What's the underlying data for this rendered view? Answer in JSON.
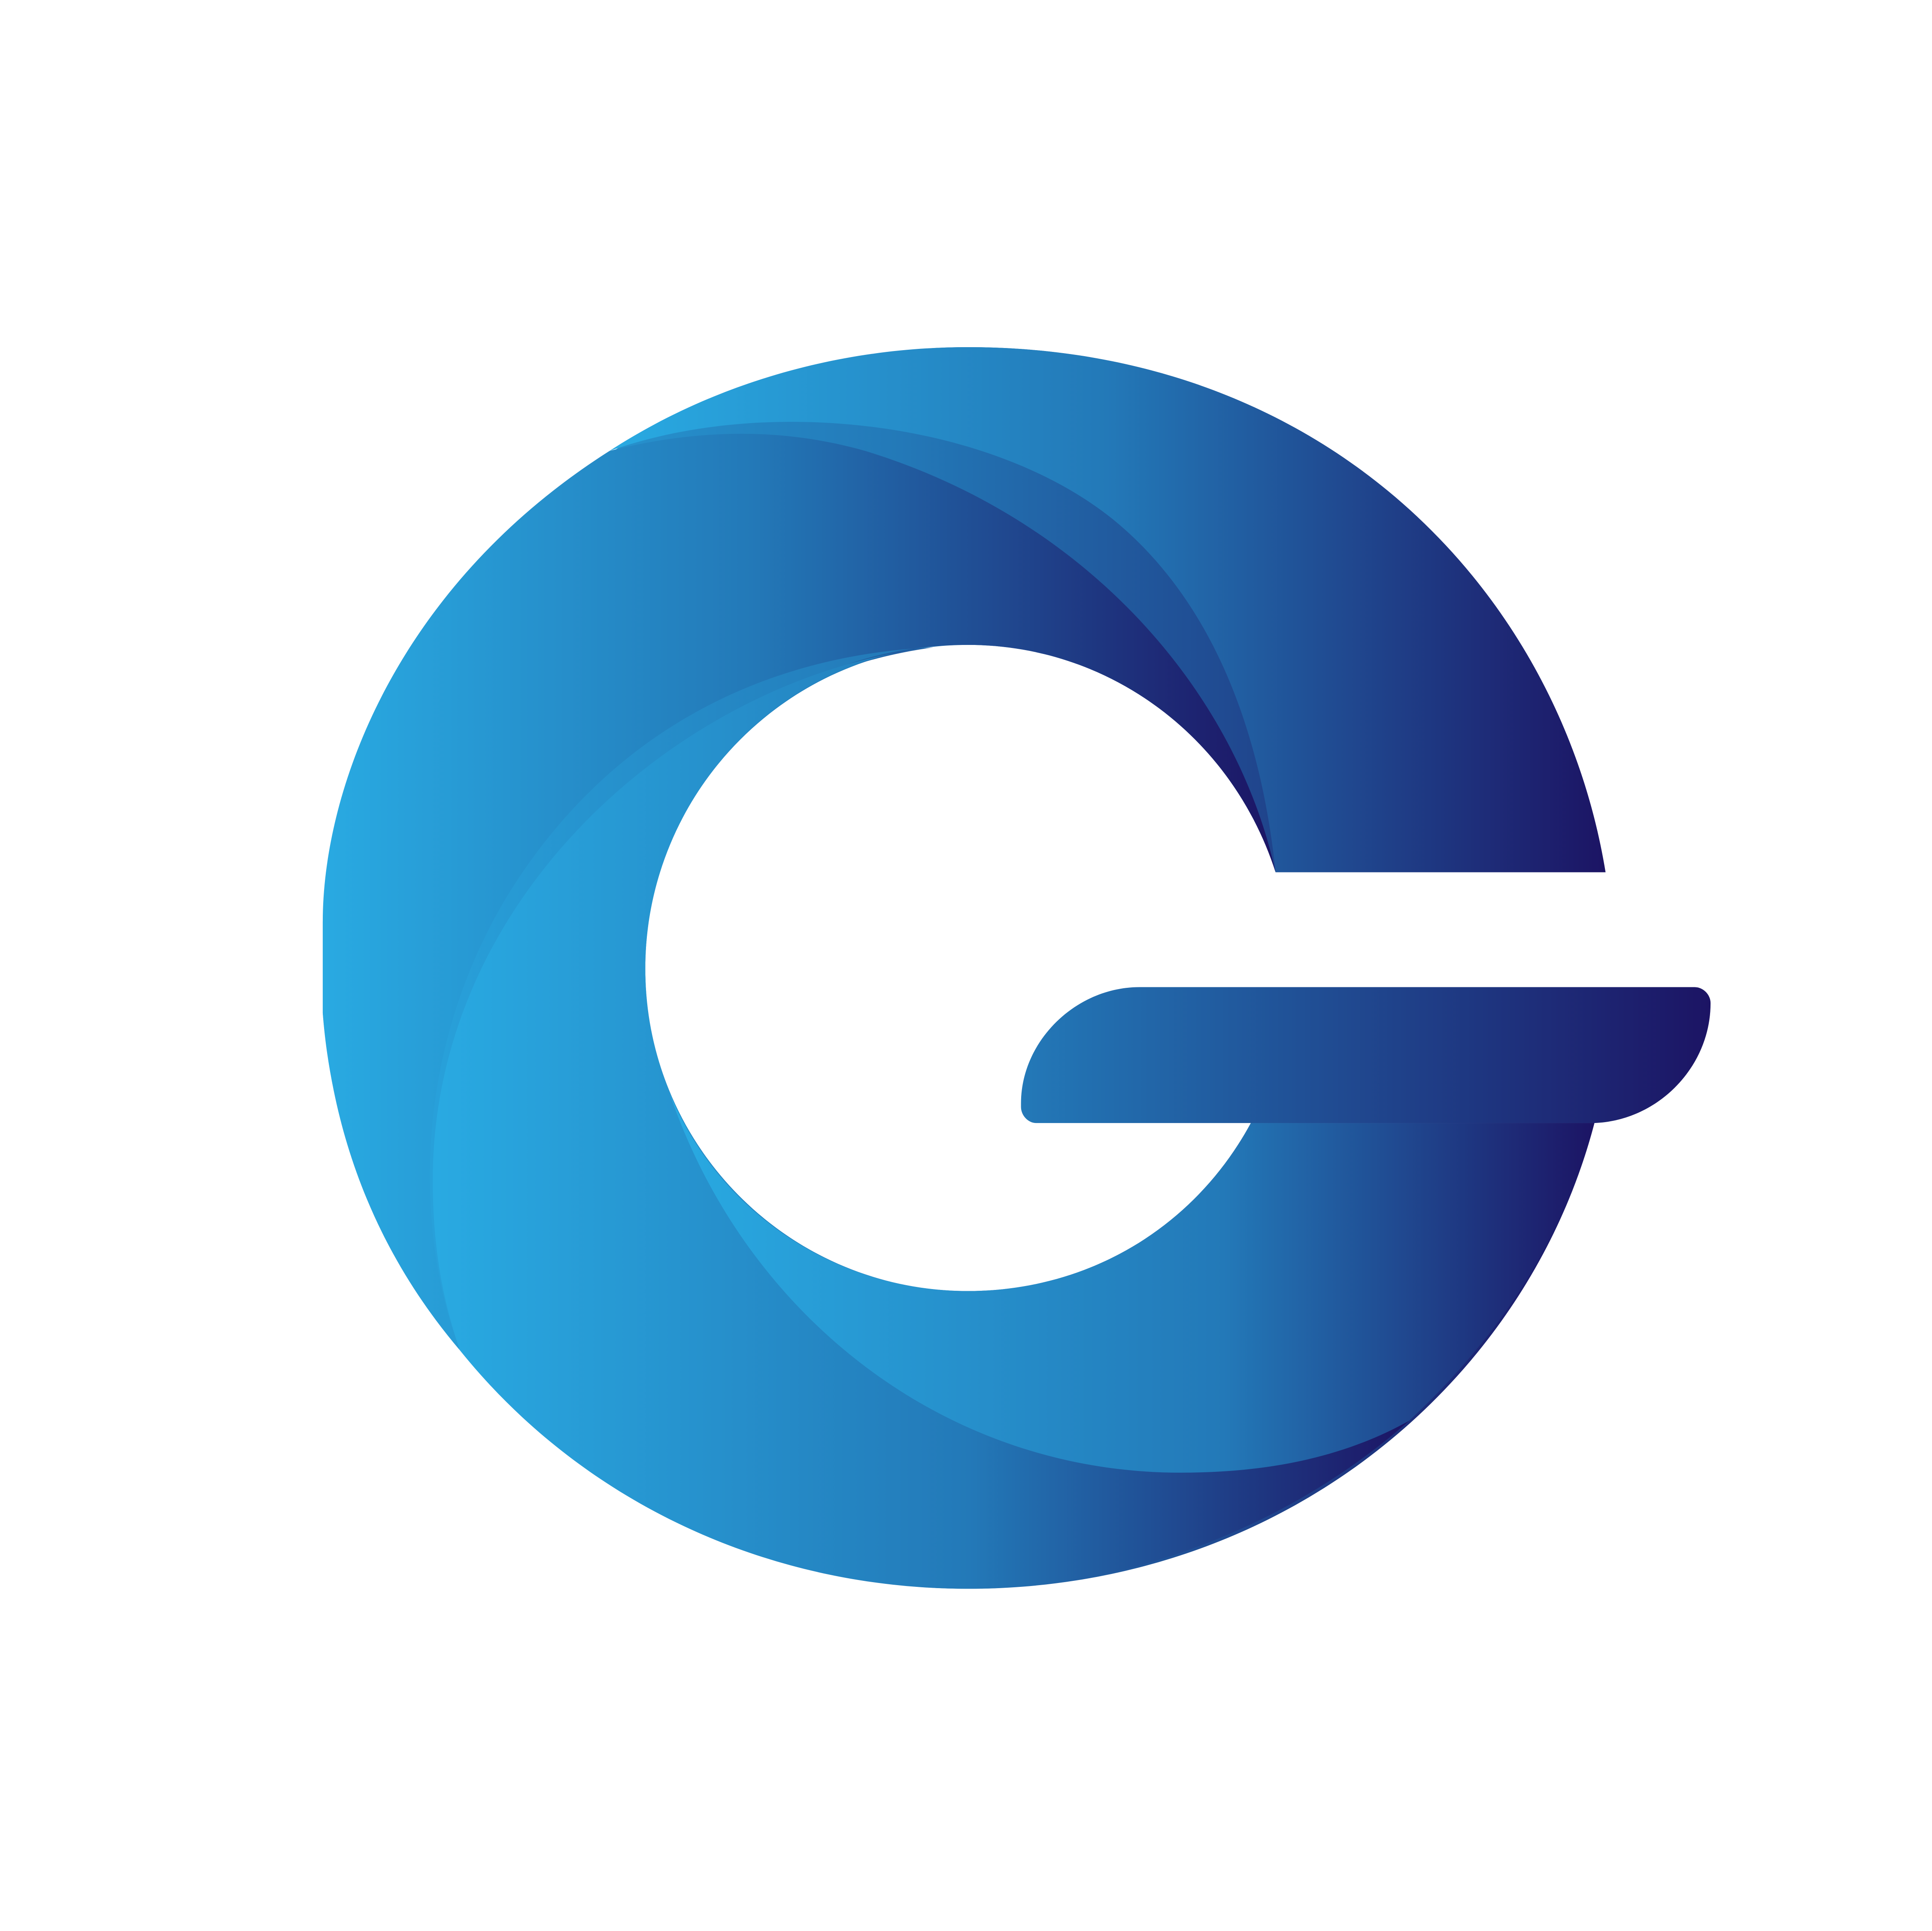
{
  "logo": {
    "letter": "G",
    "colors": {
      "background": "#ffffff",
      "gradient_light": "#29aae2",
      "gradient_mid": "#2379b8",
      "gradient_dark": "#1c1464"
    }
  }
}
